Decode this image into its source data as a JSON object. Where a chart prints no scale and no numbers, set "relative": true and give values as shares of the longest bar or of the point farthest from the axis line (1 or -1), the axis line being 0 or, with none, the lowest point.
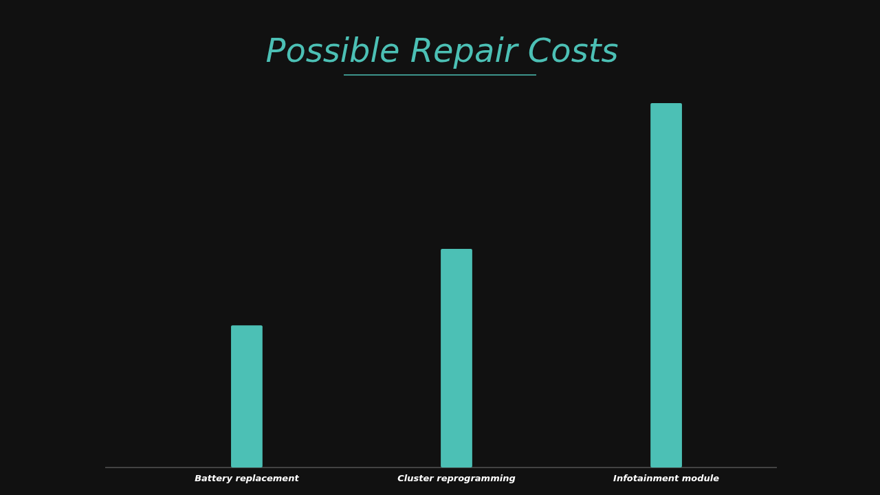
{
  "chart_data": {
    "type": "bar",
    "title": "Possible Repair Costs",
    "relative": true,
    "categories": [
      "Battery replacement",
      "Cluster reprogramming",
      "Infotainment module"
    ],
    "values": [
      0.39,
      0.6,
      1
    ],
    "color": "#4cc0b5"
  }
}
